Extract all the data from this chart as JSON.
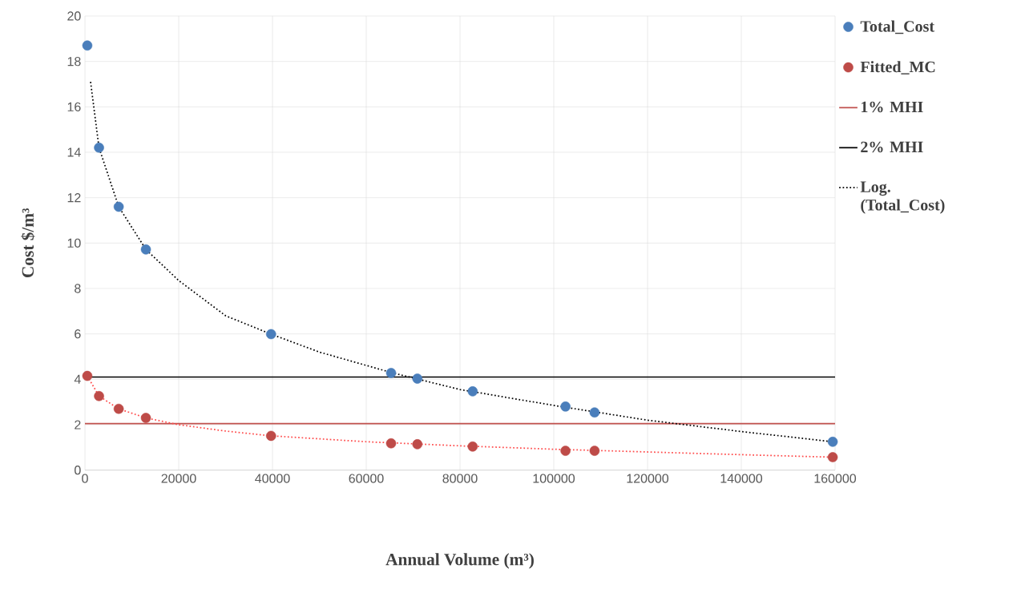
{
  "chart_data": {
    "type": "scatter",
    "xlabel": "Annual Volume (m³)",
    "ylabel": "Cost $/m³",
    "xlim": [
      0,
      160000
    ],
    "ylim": [
      0,
      20
    ],
    "xticks": [
      0,
      20000,
      40000,
      60000,
      80000,
      100000,
      120000,
      140000,
      160000
    ],
    "yticks": [
      0,
      2,
      4,
      6,
      8,
      10,
      12,
      14,
      16,
      18,
      20
    ],
    "grid": true,
    "legend": "right",
    "marker": "circle",
    "series": [
      {
        "name": "Total_Cost",
        "color": "#4a7ebb",
        "x": [
          500,
          3000,
          7200,
          13000,
          39700,
          65300,
          70900,
          82700,
          102500,
          108700,
          159500
        ],
        "values": [
          18.7,
          14.2,
          11.6,
          9.72,
          5.99,
          4.28,
          4.03,
          3.47,
          2.8,
          2.54,
          1.25
        ]
      },
      {
        "name": "Fitted_MC",
        "color": "#be4b48",
        "x": [
          500,
          3000,
          7200,
          13000,
          39700,
          65300,
          70900,
          82700,
          102500,
          108700,
          159500
        ],
        "values": [
          4.15,
          3.26,
          2.7,
          2.3,
          1.51,
          1.18,
          1.14,
          1.04,
          0.85,
          0.85,
          0.57
        ]
      },
      {
        "name": "Log. (Total_Cost)",
        "type": "line",
        "color": "#000000",
        "line_style": "dotted",
        "marker": "none",
        "x": [
          1200,
          3000,
          7200,
          13000,
          20000,
          30000,
          39700,
          50000,
          65300,
          80000,
          100000,
          120000,
          140000,
          159500
        ],
        "values": [
          17.1,
          14.2,
          11.6,
          9.72,
          8.35,
          6.8,
          5.99,
          5.2,
          4.3,
          3.55,
          2.85,
          2.2,
          1.7,
          1.25
        ]
      },
      {
        "type": "line",
        "color": "#ff4b4b",
        "line_style": "dotted",
        "marker": "none",
        "x": [
          500,
          3000,
          7200,
          13000,
          20000,
          30000,
          39700,
          60000,
          80000,
          100000,
          120000,
          140000,
          159500
        ],
        "values": [
          4.15,
          3.26,
          2.7,
          2.3,
          2.0,
          1.72,
          1.51,
          1.25,
          1.07,
          0.92,
          0.8,
          0.68,
          0.57
        ]
      }
    ],
    "ref_lines": [
      {
        "axis": "y",
        "value": 2.05,
        "label": "1% MHI",
        "color": "#c0504d"
      },
      {
        "axis": "y",
        "value": 4.1,
        "label": "2% MHI",
        "color": "#000000"
      }
    ]
  }
}
